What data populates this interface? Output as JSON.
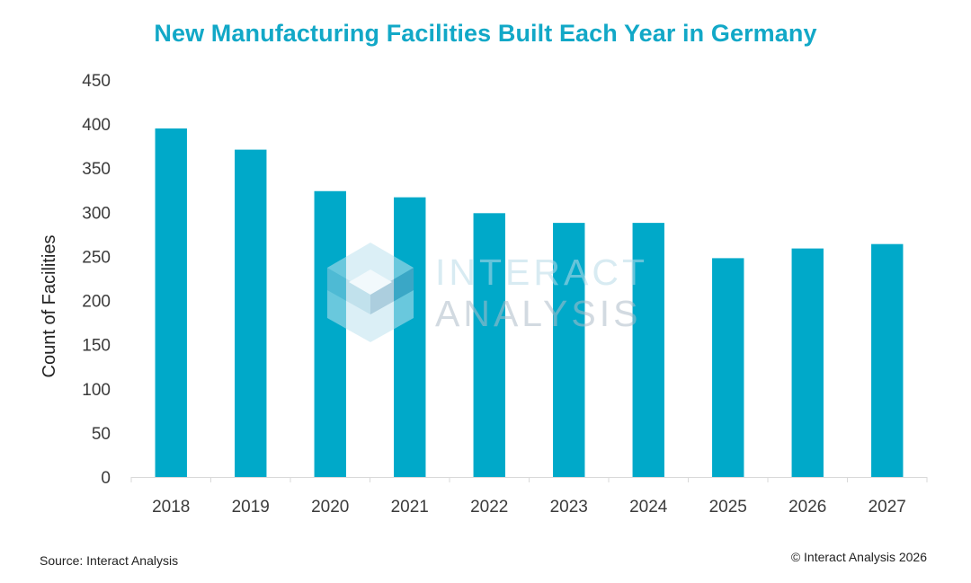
{
  "chart_data": {
    "type": "bar",
    "title": "New Manufacturing Facilities Built Each Year in Germany",
    "xlabel": "",
    "ylabel": "Count of Facilities",
    "categories": [
      "2018",
      "2019",
      "2020",
      "2021",
      "2022",
      "2023",
      "2024",
      "2025",
      "2026",
      "2027"
    ],
    "values": [
      395,
      371,
      324,
      317,
      299,
      288,
      288,
      248,
      259,
      264
    ],
    "ylim": [
      0,
      450
    ],
    "yticks": [
      0,
      50,
      100,
      150,
      200,
      250,
      300,
      350,
      400,
      450
    ],
    "grid": false,
    "bar_color": "#00a9c9",
    "title_color": "#12a8c7"
  },
  "watermark": {
    "line1": "INTERACT",
    "line2": "ANALYSIS"
  },
  "footer": {
    "source": "Source: Interact Analysis",
    "copyright": "© Interact Analysis 2026"
  }
}
